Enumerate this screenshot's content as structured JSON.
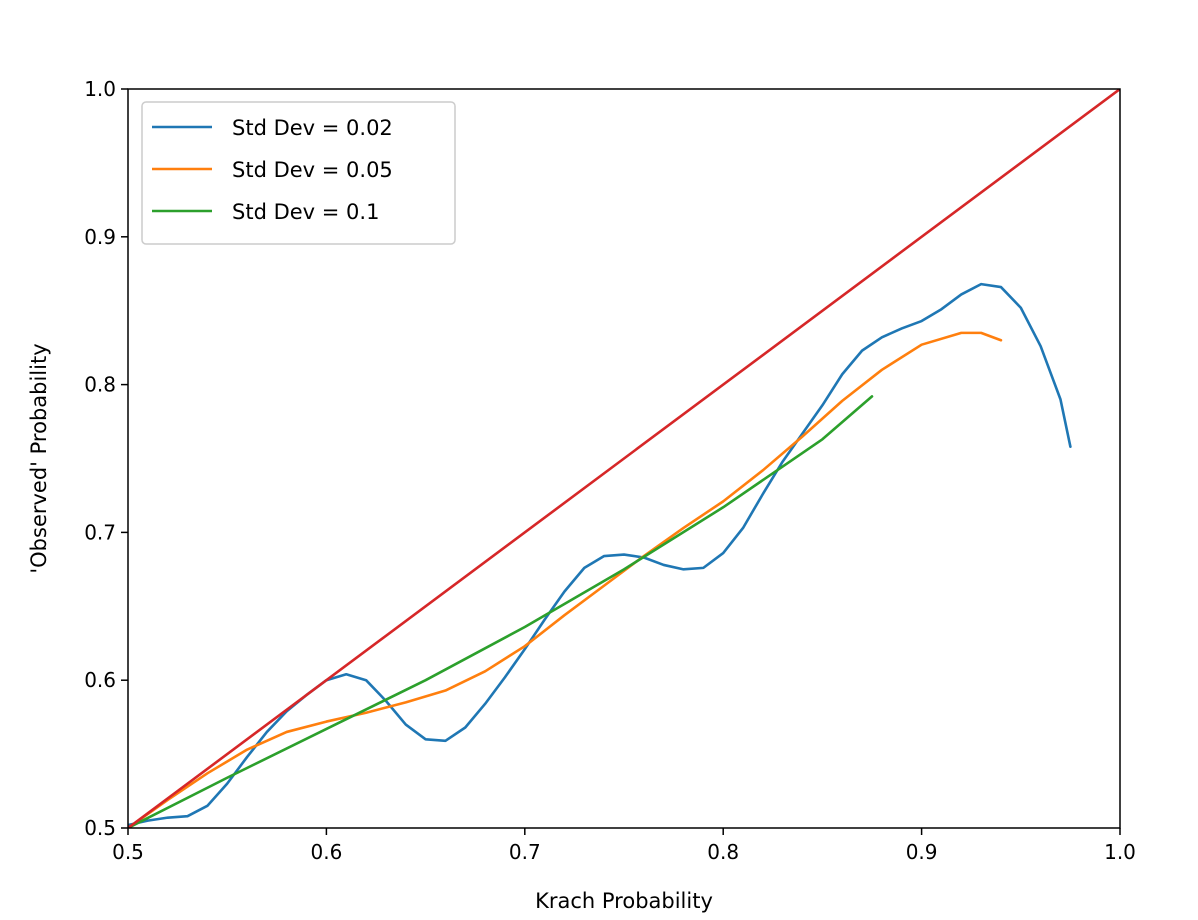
{
  "chart_data": {
    "type": "line",
    "title": "",
    "xlabel": "Krach Probability",
    "ylabel": "'Observed' Probability",
    "xlim": [
      0.5,
      1.0
    ],
    "ylim": [
      0.5,
      1.0
    ],
    "xticks": [
      "0.5",
      "0.6",
      "0.7",
      "0.8",
      "0.9",
      "1.0"
    ],
    "yticks": [
      "0.5",
      "0.6",
      "0.7",
      "0.8",
      "0.9",
      "1.0"
    ],
    "grid": false,
    "legend_position": "top-left",
    "series": [
      {
        "name": "Std Dev = 0.02",
        "color": "#1f77b4",
        "x": [
          0.5,
          0.51,
          0.52,
          0.53,
          0.54,
          0.55,
          0.56,
          0.57,
          0.58,
          0.59,
          0.6,
          0.61,
          0.62,
          0.63,
          0.64,
          0.65,
          0.66,
          0.67,
          0.68,
          0.69,
          0.7,
          0.71,
          0.72,
          0.73,
          0.74,
          0.75,
          0.76,
          0.77,
          0.78,
          0.79,
          0.8,
          0.81,
          0.82,
          0.83,
          0.84,
          0.85,
          0.86,
          0.87,
          0.88,
          0.89,
          0.9,
          0.91,
          0.92,
          0.93,
          0.94,
          0.95,
          0.96,
          0.97,
          0.975
        ],
        "y": [
          0.502,
          0.505,
          0.507,
          0.508,
          0.515,
          0.53,
          0.548,
          0.565,
          0.579,
          0.59,
          0.6,
          0.604,
          0.6,
          0.586,
          0.57,
          0.56,
          0.559,
          0.568,
          0.584,
          0.602,
          0.621,
          0.641,
          0.66,
          0.676,
          0.684,
          0.685,
          0.683,
          0.678,
          0.675,
          0.676,
          0.686,
          0.703,
          0.726,
          0.748,
          0.767,
          0.786,
          0.807,
          0.823,
          0.832,
          0.838,
          0.843,
          0.851,
          0.861,
          0.868,
          0.866,
          0.852,
          0.826,
          0.79,
          0.758
        ]
      },
      {
        "name": "Std Dev = 0.05",
        "color": "#ff7f0e",
        "x": [
          0.5,
          0.52,
          0.54,
          0.56,
          0.58,
          0.6,
          0.62,
          0.64,
          0.66,
          0.68,
          0.7,
          0.72,
          0.74,
          0.76,
          0.78,
          0.8,
          0.82,
          0.84,
          0.86,
          0.88,
          0.9,
          0.92,
          0.93,
          0.94
        ],
        "y": [
          0.5,
          0.519,
          0.537,
          0.553,
          0.565,
          0.572,
          0.578,
          0.585,
          0.593,
          0.606,
          0.623,
          0.644,
          0.664,
          0.684,
          0.703,
          0.721,
          0.742,
          0.765,
          0.789,
          0.81,
          0.827,
          0.835,
          0.835,
          0.83
        ]
      },
      {
        "name": "Std Dev = 0.1",
        "color": "#2ca02c",
        "x": [
          0.5,
          0.55,
          0.6,
          0.65,
          0.7,
          0.75,
          0.8,
          0.85,
          0.875
        ],
        "y": [
          0.5,
          0.534,
          0.567,
          0.6,
          0.636,
          0.675,
          0.717,
          0.763,
          0.792
        ]
      },
      {
        "name": "",
        "color": "#d62728",
        "x": [
          0.5,
          1.0
        ],
        "y": [
          0.5,
          1.0
        ]
      }
    ]
  }
}
